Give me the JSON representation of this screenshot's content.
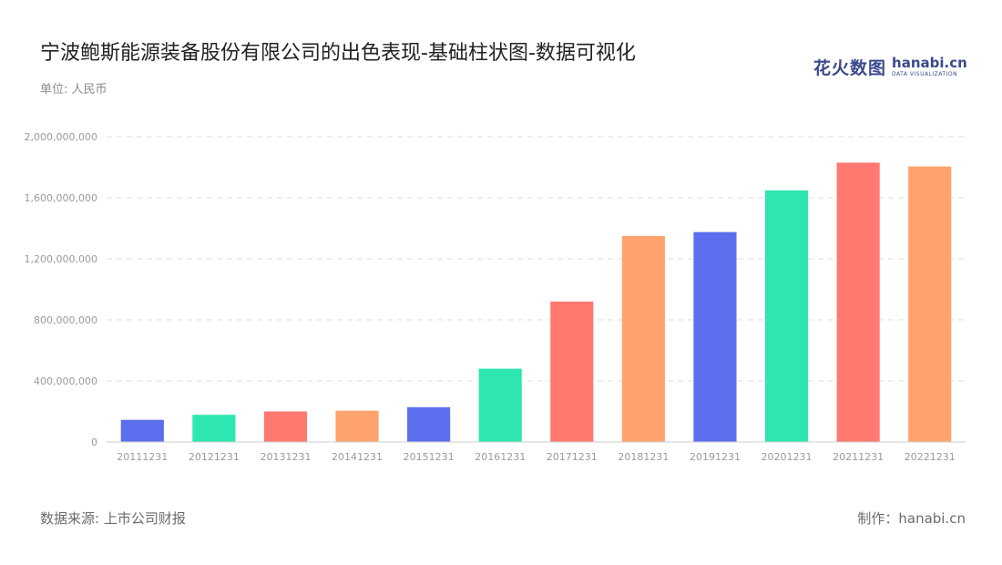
{
  "header": {
    "title": "宁波鲍斯能源装备股份有限公司的出色表现-基础柱状图-数据可视化",
    "unit": "单位: 人民币"
  },
  "logo": {
    "cn": "花火数图",
    "en": "hanabi.cn",
    "en_sub": "DATA VISUALIZATION"
  },
  "footer": {
    "source": "数据来源: 上市公司财报",
    "credit": "制作：hanabi.cn"
  },
  "chart_data": {
    "type": "bar",
    "title": "宁波鲍斯能源装备股份有限公司的出色表现-基础柱状图-数据可视化",
    "xlabel": "",
    "ylabel": "",
    "categories": [
      "20111231",
      "20121231",
      "20131231",
      "20141231",
      "20151231",
      "20161231",
      "20171231",
      "20181231",
      "20191231",
      "20201231",
      "20211231",
      "20221231"
    ],
    "values": [
      145000000,
      178000000,
      200000000,
      205000000,
      228000000,
      480000000,
      920000000,
      1350000000,
      1375000000,
      1648000000,
      1830000000,
      1805000000
    ],
    "ylim": [
      0,
      2000000000
    ],
    "yticks": [
      0,
      400000000,
      800000000,
      1200000000,
      1600000000,
      2000000000
    ],
    "ytick_labels": [
      "0",
      "400,000,000",
      "800,000,000",
      "1,200,000,000",
      "1,600,000,000",
      "2,000,000,000"
    ],
    "grid": true,
    "legend": "none",
    "colors": [
      "#5b6fef",
      "#2ee6b0",
      "#ff7970",
      "#ffa36e"
    ]
  }
}
